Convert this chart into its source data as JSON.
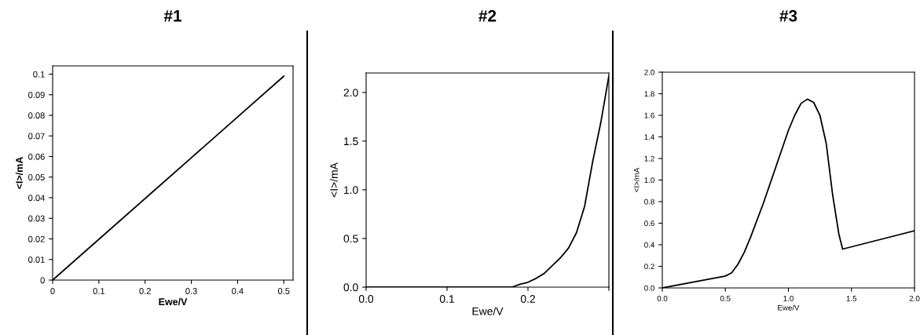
{
  "chart_data": [
    {
      "type": "line",
      "title": "#1",
      "xlabel": "Ewe/V",
      "ylabel": "<I>/mA",
      "x": [
        0,
        0.1,
        0.2,
        0.3,
        0.4,
        0.5
      ],
      "series": [
        {
          "color": "#000000",
          "values": [
            0,
            0.0198,
            0.0396,
            0.0594,
            0.0792,
            0.099
          ]
        }
      ],
      "xlim": [
        0,
        0.52
      ],
      "ylim": [
        0,
        0.104
      ],
      "xticks": [
        0,
        0.1,
        0.2,
        0.3,
        0.4,
        0.5
      ],
      "yticks": [
        0,
        0.01,
        0.02,
        0.03,
        0.04,
        0.05,
        0.06,
        0.07,
        0.08,
        0.09,
        0.1
      ],
      "grid": false
    },
    {
      "type": "line",
      "title": "#2",
      "xlabel": "Ewe/V",
      "ylabel": "<I>/mA",
      "x": [
        0,
        0.1,
        0.18,
        0.19,
        0.2,
        0.21,
        0.22,
        0.23,
        0.24,
        0.25,
        0.26,
        0.27,
        0.28,
        0.29,
        0.3
      ],
      "series": [
        {
          "color": "#000000",
          "values": [
            0,
            0,
            0,
            0.03,
            0.05,
            0.09,
            0.14,
            0.22,
            0.3,
            0.4,
            0.56,
            0.83,
            1.29,
            1.69,
            2.17
          ]
        }
      ],
      "xlim": [
        0,
        0.3
      ],
      "ylim": [
        0,
        2.2
      ],
      "xticks": [
        {
          "value": 0,
          "label": "0.0"
        },
        0.1,
        0.2,
        {
          "value": 0.3,
          "label": null
        }
      ],
      "yticks": [
        {
          "value": 0,
          "label": "0.0"
        },
        0.5,
        {
          "value": 1,
          "label": "1.0"
        },
        1.5,
        {
          "value": 2,
          "label": "2.0"
        }
      ],
      "grid": false
    },
    {
      "type": "line",
      "title": "#3",
      "xlabel": "Ewe/V",
      "ylabel": "<I>/mA",
      "x": [
        0,
        0.5,
        0.55,
        0.6,
        0.65,
        0.7,
        0.8,
        0.9,
        1.0,
        1.05,
        1.1,
        1.15,
        1.2,
        1.25,
        1.3,
        1.35,
        1.4,
        1.43,
        2.0
      ],
      "series": [
        {
          "color": "#000000",
          "values": [
            0,
            0.11,
            0.14,
            0.22,
            0.33,
            0.47,
            0.78,
            1.12,
            1.46,
            1.6,
            1.71,
            1.75,
            1.72,
            1.6,
            1.34,
            0.87,
            0.5,
            0.36,
            0.53
          ]
        }
      ],
      "xlim": [
        0,
        2.0
      ],
      "ylim": [
        0,
        2.0
      ],
      "xticks": [
        {
          "value": 0,
          "label": "0.0"
        },
        0.5,
        {
          "value": 1,
          "label": "1.0"
        },
        1.5,
        {
          "value": 2,
          "label": "2.0"
        }
      ],
      "yticks": [
        {
          "value": 0,
          "label": "0.0"
        },
        0.2,
        0.4,
        0.6,
        0.8,
        {
          "value": 1,
          "label": "1.0"
        },
        1.2,
        1.4,
        1.6,
        1.8,
        {
          "value": 2,
          "label": "2.0"
        }
      ],
      "grid": false
    }
  ]
}
